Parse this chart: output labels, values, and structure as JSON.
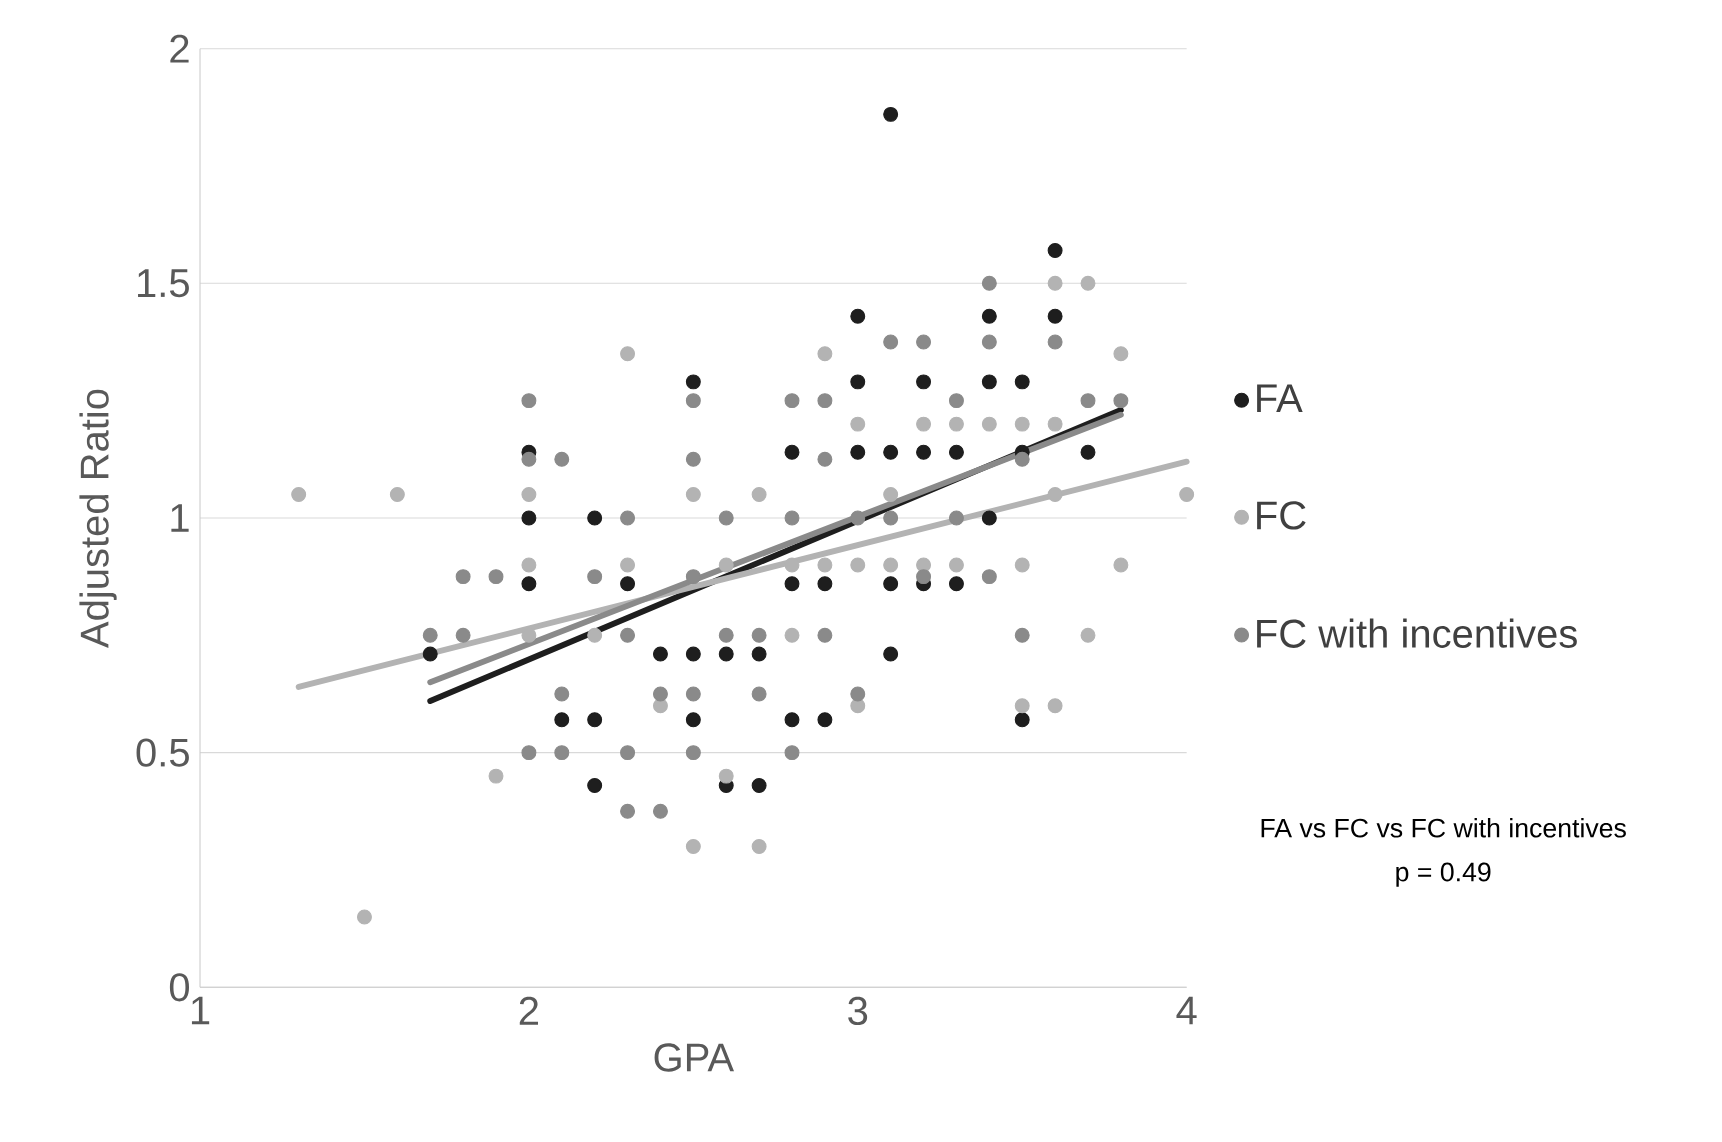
{
  "chart_data": {
    "type": "scatter",
    "xlabel": "GPA",
    "ylabel": "Adjusted Ratio",
    "xlim": [
      1,
      4
    ],
    "ylim": [
      0,
      2
    ],
    "xticks": [
      1,
      2,
      3,
      4
    ],
    "yticks": [
      0,
      0.5,
      1,
      1.5,
      2
    ],
    "grid": "y",
    "legend": "right",
    "marker": "circle",
    "annotations": [
      "FA vs FC vs FC with incentives",
      "p = 0.49"
    ],
    "series": [
      {
        "name": "FA",
        "color": "#1e1e1e",
        "x": [
          1.7,
          2.0,
          2.0,
          2.0,
          2.1,
          2.2,
          2.2,
          2.2,
          2.3,
          2.4,
          2.5,
          2.5,
          2.5,
          2.6,
          2.6,
          2.7,
          2.7,
          2.8,
          2.8,
          2.8,
          2.9,
          2.9,
          3.0,
          3.0,
          3.0,
          3.1,
          3.1,
          3.1,
          3.1,
          3.2,
          3.2,
          3.2,
          3.3,
          3.3,
          3.4,
          3.4,
          3.4,
          3.5,
          3.5,
          3.5,
          3.6,
          3.6,
          3.7
        ],
        "values": [
          0.71,
          1.14,
          1.0,
          0.86,
          0.57,
          1.0,
          0.57,
          0.43,
          0.86,
          0.71,
          1.29,
          0.71,
          0.57,
          0.71,
          0.43,
          0.71,
          0.43,
          1.14,
          0.86,
          0.57,
          0.86,
          0.57,
          1.43,
          1.29,
          1.14,
          1.86,
          1.14,
          0.86,
          0.71,
          1.29,
          1.14,
          0.86,
          1.14,
          0.86,
          1.43,
          1.29,
          1.0,
          1.29,
          1.14,
          0.57,
          1.57,
          1.43,
          1.14
        ]
      },
      {
        "name": "FC",
        "color": "#b3b3b3",
        "x": [
          1.3,
          1.5,
          1.6,
          1.9,
          2.0,
          2.0,
          2.0,
          2.2,
          2.3,
          2.3,
          2.4,
          2.5,
          2.5,
          2.6,
          2.6,
          2.7,
          2.7,
          2.8,
          2.8,
          2.9,
          2.9,
          3.0,
          3.0,
          3.0,
          3.1,
          3.1,
          3.2,
          3.2,
          3.3,
          3.3,
          3.4,
          3.5,
          3.5,
          3.5,
          3.6,
          3.6,
          3.6,
          3.6,
          3.7,
          3.7,
          3.8,
          3.8,
          4.0
        ],
        "values": [
          1.05,
          0.15,
          1.05,
          0.45,
          1.05,
          0.9,
          0.75,
          0.75,
          1.35,
          0.9,
          0.6,
          1.05,
          0.3,
          0.45,
          0.9,
          1.05,
          0.3,
          0.9,
          0.75,
          1.35,
          0.9,
          1.2,
          0.9,
          0.6,
          1.05,
          0.9,
          1.2,
          0.9,
          1.2,
          0.9,
          1.2,
          1.2,
          0.9,
          0.6,
          1.5,
          1.2,
          1.05,
          0.6,
          1.5,
          0.75,
          1.35,
          0.9,
          1.05
        ]
      },
      {
        "name": "FC with incentives",
        "color": "#8a8a8a",
        "x": [
          1.7,
          1.8,
          1.8,
          1.9,
          2.0,
          2.0,
          2.0,
          2.1,
          2.1,
          2.1,
          2.2,
          2.3,
          2.3,
          2.3,
          2.3,
          2.4,
          2.4,
          2.5,
          2.5,
          2.5,
          2.5,
          2.5,
          2.6,
          2.6,
          2.7,
          2.7,
          2.8,
          2.8,
          2.8,
          2.9,
          2.9,
          2.9,
          3.0,
          3.0,
          3.1,
          3.1,
          3.2,
          3.2,
          3.3,
          3.3,
          3.4,
          3.4,
          3.4,
          3.5,
          3.5,
          3.6,
          3.7,
          3.8
        ],
        "values": [
          0.75,
          0.875,
          0.75,
          0.875,
          1.25,
          1.125,
          0.5,
          1.125,
          0.625,
          0.5,
          0.875,
          1.0,
          0.75,
          0.5,
          0.375,
          0.625,
          0.375,
          1.25,
          1.125,
          0.875,
          0.625,
          0.5,
          1.0,
          0.75,
          0.75,
          0.625,
          1.25,
          1.0,
          0.5,
          1.25,
          1.125,
          0.75,
          1.0,
          0.625,
          1.375,
          1.0,
          1.375,
          0.875,
          1.25,
          1.0,
          1.5,
          1.375,
          0.875,
          1.125,
          0.75,
          1.375,
          1.25,
          1.25
        ]
      },
      {
        "type": "line",
        "marker": "none",
        "color": "#1e1e1e",
        "x": [
          1.7,
          3.8
        ],
        "values": [
          0.61,
          1.23
        ]
      },
      {
        "type": "line",
        "marker": "none",
        "color": "#b3b3b3",
        "x": [
          1.3,
          4.0
        ],
        "values": [
          0.64,
          1.12
        ]
      },
      {
        "type": "line",
        "marker": "none",
        "color": "#8a8a8a",
        "x": [
          1.7,
          3.8
        ],
        "values": [
          0.65,
          1.22
        ]
      }
    ]
  }
}
